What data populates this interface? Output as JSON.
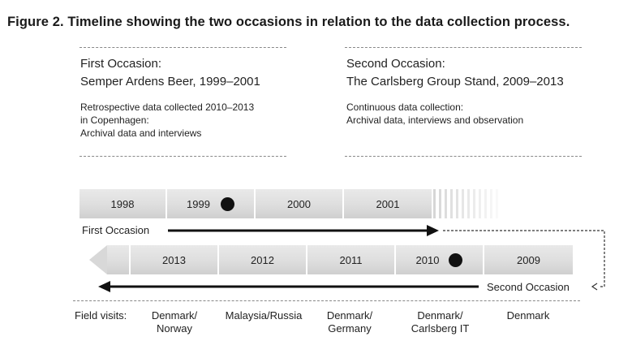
{
  "figure_title": "Figure 2.  Timeline showing the two occasions in relation to the data collection process.",
  "first_occasion": {
    "heading": "First Occasion:",
    "subheading": "Semper Ardens Beer, 1999–2001",
    "lines": [
      "Retrospective data collected 2010–2013",
      "in Copenhagen:",
      "Archival data and interviews"
    ]
  },
  "second_occasion": {
    "heading": "Second Occasion:",
    "subheading": "The Carlsberg Group Stand, 2009–2013",
    "lines": [
      "Continuous data collection:",
      "Archival data, interviews and observation"
    ]
  },
  "timeline_top": {
    "years": [
      "1998",
      "1999",
      "2000",
      "2001"
    ],
    "marked_year": "1999",
    "label": "First Occasion"
  },
  "timeline_bottom": {
    "years": [
      "2013",
      "2012",
      "2011",
      "2010",
      "2009"
    ],
    "marked_year": "2010",
    "label": "Second Occasion"
  },
  "field_visits": {
    "label": "Field visits:",
    "items": [
      {
        "line1": "Denmark/",
        "line2": "Norway"
      },
      {
        "line1": "Malaysia/Russia",
        "line2": ""
      },
      {
        "line1": "Denmark/",
        "line2": "Germany"
      },
      {
        "line1": "Denmark/",
        "line2": "Carlsberg IT"
      },
      {
        "line1": "Denmark",
        "line2": ""
      }
    ]
  },
  "colors": {
    "arrow": "#111111",
    "dashed_connector": "#333333",
    "bar_fill": "#dedede",
    "marker": "#111111"
  }
}
